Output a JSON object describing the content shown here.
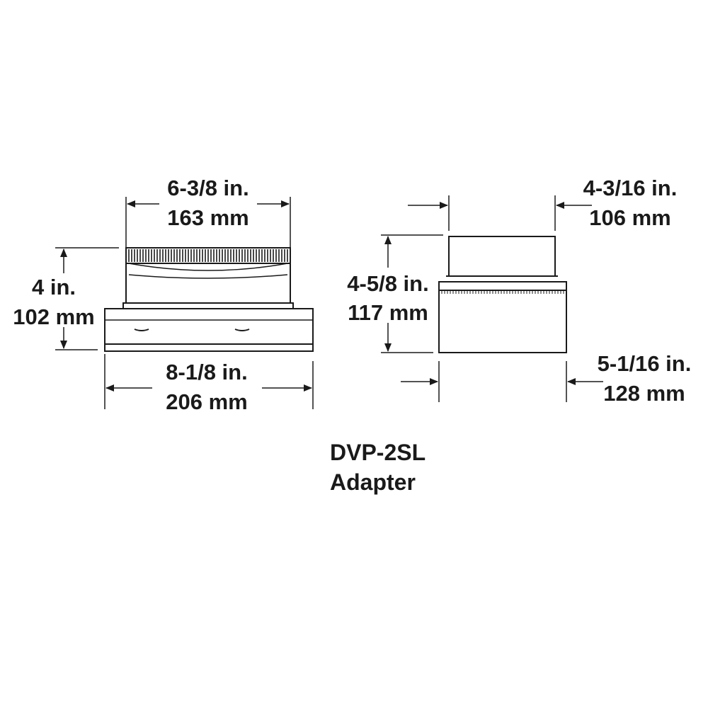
{
  "product": {
    "name": "DVP-2SL",
    "type": "Adapter"
  },
  "front_view": {
    "top_width": {
      "imperial": "6-3/8 in.",
      "metric": "163 mm"
    },
    "height": {
      "imperial": "4 in.",
      "metric": "102 mm"
    },
    "base_width": {
      "imperial": "8-1/8 in.",
      "metric": "206 mm"
    }
  },
  "side_view": {
    "top_width": {
      "imperial": "4-3/16 in.",
      "metric": "106 mm"
    },
    "height": {
      "imperial": "4-5/8 in.",
      "metric": "117 mm"
    },
    "base_width": {
      "imperial": "5-1/16 in.",
      "metric": "128 mm"
    }
  },
  "colors": {
    "line": "#1a1a1a",
    "background": "#ffffff"
  }
}
